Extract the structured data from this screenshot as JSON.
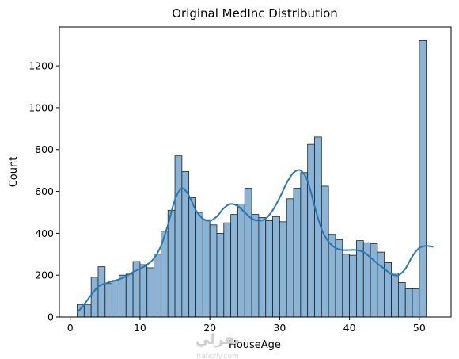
{
  "chart_data": {
    "type": "bar",
    "title": "Original MedInc Distribution",
    "xlabel": "HouseAge",
    "ylabel": "Count",
    "xlim": [
      -1.55,
      54.55
    ],
    "ylim": [
      0,
      1386
    ],
    "xticks": [
      0,
      10,
      20,
      30,
      40,
      50
    ],
    "yticks": [
      0,
      200,
      400,
      600,
      800,
      1000,
      1200
    ],
    "grid": false,
    "bin_start": 1,
    "bin_width": 1.0,
    "bar_color": "#8ab4d6",
    "bar_edge_color": "#1f1f1f",
    "kde_color": "#2777b4",
    "bin_counts": [
      60,
      60,
      190,
      240,
      160,
      175,
      200,
      205,
      265,
      250,
      235,
      300,
      410,
      510,
      770,
      695,
      570,
      500,
      465,
      440,
      400,
      450,
      490,
      540,
      615,
      490,
      475,
      460,
      480,
      455,
      565,
      615,
      690,
      825,
      860,
      625,
      395,
      370,
      300,
      295,
      365,
      355,
      350,
      310,
      260,
      210,
      165,
      135,
      135,
      1320
    ],
    "kde": {
      "x": [
        1,
        2,
        3,
        4,
        5,
        6,
        7,
        8,
        9,
        10,
        11,
        12,
        13,
        14,
        15,
        16,
        17,
        18,
        19,
        20,
        21,
        22,
        23,
        24,
        25,
        26,
        27,
        28,
        29,
        30,
        31,
        32,
        33,
        34,
        35,
        36,
        37,
        38,
        39,
        40,
        41,
        42,
        43,
        44,
        45,
        46,
        47,
        48,
        49,
        50,
        51,
        52
      ],
      "y": [
        20,
        60,
        105,
        145,
        160,
        170,
        180,
        195,
        215,
        230,
        250,
        280,
        340,
        440,
        560,
        615,
        580,
        510,
        470,
        460,
        480,
        520,
        540,
        530,
        500,
        470,
        460,
        470,
        510,
        570,
        640,
        690,
        700,
        650,
        530,
        420,
        360,
        330,
        320,
        320,
        320,
        310,
        285,
        255,
        230,
        205,
        200,
        230,
        290,
        330,
        340,
        335
      ]
    },
    "watermark": "نفزلي",
    "watermark_sub": "nafezly.com"
  }
}
